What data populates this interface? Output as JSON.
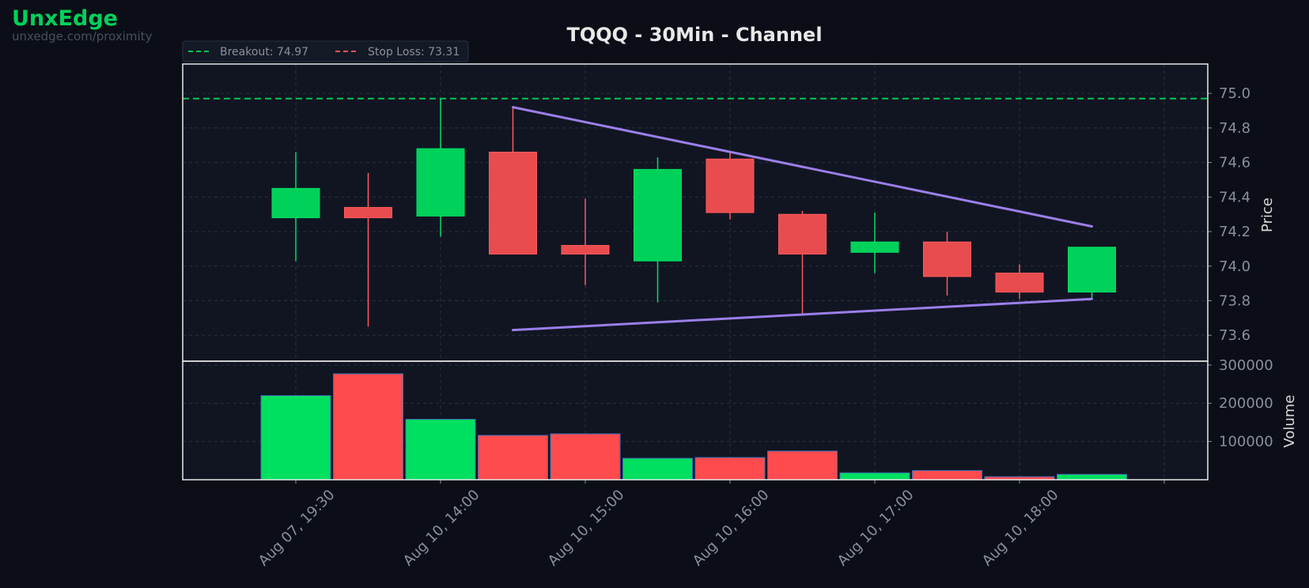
{
  "brand": {
    "name": "UnxEdge",
    "url": "unxedge.com/proximity"
  },
  "chart_data": {
    "type": "candlestick",
    "title": "TQQQ - 30Min - Channel",
    "ylabel": "Price",
    "volume_label": "Volume",
    "price_ylim": [
      73.45,
      75.17
    ],
    "price_ticks": [
      "73.6",
      "73.8",
      "74.0",
      "74.2",
      "74.4",
      "74.6",
      "74.8",
      "75.0"
    ],
    "volume_ylim": [
      0,
      310000
    ],
    "volume_ticks": [
      "100000",
      "200000",
      "300000"
    ],
    "x_ticks": [
      {
        "i": 0,
        "label": "Aug 07, 19:30"
      },
      {
        "i": 2,
        "label": "Aug 10, 14:00"
      },
      {
        "i": 4,
        "label": "Aug 10, 15:00"
      },
      {
        "i": 6,
        "label": "Aug 10, 16:00"
      },
      {
        "i": 8,
        "label": "Aug 10, 17:00"
      },
      {
        "i": 10,
        "label": "Aug 10, 18:00"
      }
    ],
    "candles": [
      {
        "open": 74.28,
        "high": 74.66,
        "low": 74.03,
        "close": 74.45,
        "volume": 220000
      },
      {
        "open": 74.34,
        "high": 74.54,
        "low": 73.65,
        "close": 74.28,
        "volume": 277000
      },
      {
        "open": 74.29,
        "high": 74.97,
        "low": 74.17,
        "close": 74.68,
        "volume": 158000
      },
      {
        "open": 74.66,
        "high": 74.92,
        "low": 74.07,
        "close": 74.07,
        "volume": 116000
      },
      {
        "open": 74.12,
        "high": 74.39,
        "low": 73.89,
        "close": 74.07,
        "volume": 120000
      },
      {
        "open": 74.03,
        "high": 74.63,
        "low": 73.79,
        "close": 74.56,
        "volume": 56000
      },
      {
        "open": 74.62,
        "high": 74.66,
        "low": 74.27,
        "close": 74.31,
        "volume": 58000
      },
      {
        "open": 74.3,
        "high": 74.32,
        "low": 73.72,
        "close": 74.07,
        "volume": 75000
      },
      {
        "open": 74.08,
        "high": 74.31,
        "low": 73.96,
        "close": 74.14,
        "volume": 18000
      },
      {
        "open": 74.14,
        "high": 74.2,
        "low": 73.83,
        "close": 73.94,
        "volume": 24000
      },
      {
        "open": 73.96,
        "high": 74.01,
        "low": 73.81,
        "close": 73.85,
        "volume": 8000
      },
      {
        "open": 73.85,
        "high": 74.11,
        "low": 73.81,
        "close": 74.11,
        "volume": 14000
      }
    ],
    "breakout": {
      "label": "Breakout: 74.97",
      "value": 74.97,
      "color": "#00c853"
    },
    "stop_loss": {
      "label": "Stop Loss: 73.31",
      "value": 73.31,
      "color": "#ef5350"
    },
    "channel_upper": {
      "from": {
        "i": 3,
        "price": 74.92
      },
      "to": {
        "i": 11,
        "price": 74.23
      },
      "color": "#9a7fe8"
    },
    "channel_lower": {
      "from": {
        "i": 3,
        "price": 73.63
      },
      "to": {
        "i": 11,
        "price": 73.81
      },
      "color": "#9a7fe8"
    },
    "colors": {
      "up": "#00d15a",
      "down": "#e84c4f",
      "vol_up": "#00e060",
      "vol_down": "#ff4b4e",
      "grid": "#2a3040"
    },
    "legend_position": "top-left"
  }
}
